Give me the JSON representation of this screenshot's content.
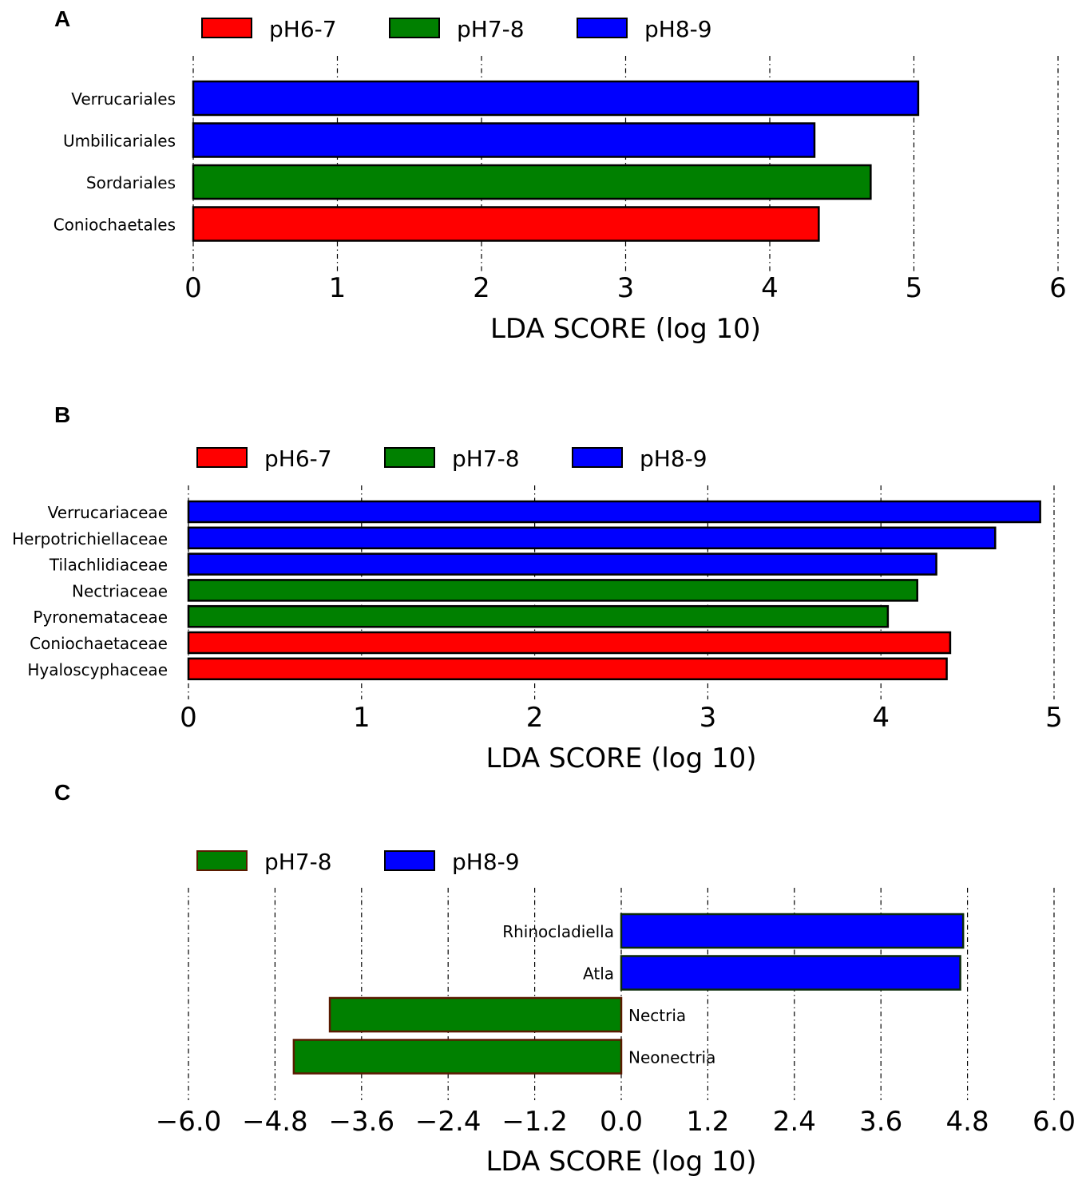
{
  "colors": {
    "pH6-7": "#ff0000",
    "pH7-8": "#008000",
    "pH8-9": "#0000ff"
  },
  "chart_data": [
    {
      "panel": "A",
      "type": "bar",
      "orientation": "horizontal",
      "legend": [
        "pH6-7",
        "pH7-8",
        "pH8-9"
      ],
      "categories": [
        "Verrucariales",
        "Umbilicariales",
        "Sordariales",
        "Coniochaetales"
      ],
      "values": [
        5.03,
        4.31,
        4.7,
        4.34
      ],
      "groups": [
        "pH8-9",
        "pH8-9",
        "pH7-8",
        "pH6-7"
      ],
      "xlabel": "LDA SCORE (log 10)",
      "xlim": [
        0,
        6
      ],
      "ticks": [
        "0",
        "1",
        "2",
        "3",
        "4",
        "5",
        "6"
      ],
      "grid": true
    },
    {
      "panel": "B",
      "type": "bar",
      "orientation": "horizontal",
      "legend": [
        "pH6-7",
        "pH7-8",
        "pH8-9"
      ],
      "categories": [
        "Verrucariaceae",
        "Herpotrichiellaceae",
        "Tilachlidiaceae",
        "Nectriaceae",
        "Pyronemataceae",
        "Coniochaetaceae",
        "Hyaloscyphaceae"
      ],
      "values": [
        4.92,
        4.66,
        4.32,
        4.21,
        4.04,
        4.4,
        4.38
      ],
      "groups": [
        "pH8-9",
        "pH8-9",
        "pH8-9",
        "pH7-8",
        "pH7-8",
        "pH6-7",
        "pH6-7"
      ],
      "xlabel": "LDA SCORE (log 10)",
      "xlim": [
        0,
        5
      ],
      "ticks": [
        "0",
        "1",
        "2",
        "3",
        "4",
        "5"
      ],
      "grid": true
    },
    {
      "panel": "C",
      "type": "bar",
      "orientation": "horizontal",
      "legend": [
        "pH7-8",
        "pH8-9"
      ],
      "categories": [
        "Rhinocladiella",
        "Atla",
        "Nectria",
        "Neonectria"
      ],
      "values": [
        4.74,
        4.7,
        -4.04,
        -4.54
      ],
      "groups": [
        "pH8-9",
        "pH8-9",
        "pH7-8",
        "pH7-8"
      ],
      "xlabel": "LDA SCORE (log 10)",
      "xlim": [
        -6.0,
        6.0
      ],
      "ticks": [
        "−6.0",
        "−4.8",
        "−3.6",
        "−2.4",
        "−1.2",
        "0.0",
        "1.2",
        "2.4",
        "3.6",
        "4.8",
        "6.0"
      ],
      "grid": true
    }
  ]
}
